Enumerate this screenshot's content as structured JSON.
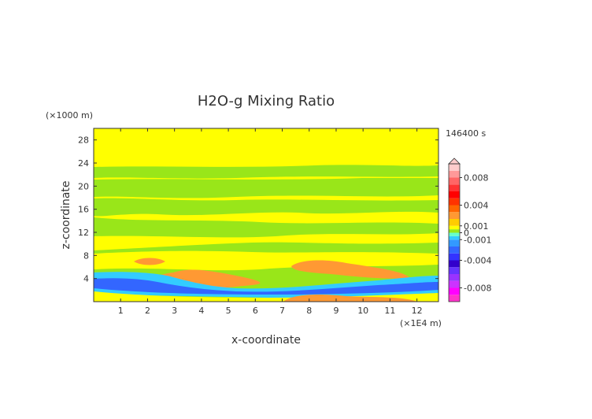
{
  "chart_data": {
    "type": "heatmap",
    "title": "H2O-g Mixing Ratio",
    "xlabel": "x-coordinate",
    "ylabel": "z-coordinate",
    "x_unit": "(×1E4 m)",
    "y_unit": "(×1000 m)",
    "time_label": "146400 s",
    "xlim": [
      0,
      12.8
    ],
    "ylim": [
      0,
      30
    ],
    "x_ticks": [
      "1",
      "2",
      "3",
      "4",
      "5",
      "6",
      "7",
      "8",
      "9",
      "10",
      "11",
      "12"
    ],
    "y_ticks": [
      "4",
      "8",
      "12",
      "16",
      "20",
      "24",
      "28"
    ],
    "colorbar_labels": [
      "0.008",
      "0.004",
      "0.001",
      "0",
      "-0.001",
      "-0.004",
      "-0.008"
    ],
    "colorbar_values": [
      0.008,
      0.004,
      0.001,
      0,
      -0.001,
      -0.004,
      -0.008
    ],
    "colors": {
      "background_field": "#ffff00",
      "green_band": "#99e619",
      "orange_band": "#ff9933",
      "cyan_band": "#33ccff",
      "blue_band": "#3366ff"
    }
  }
}
